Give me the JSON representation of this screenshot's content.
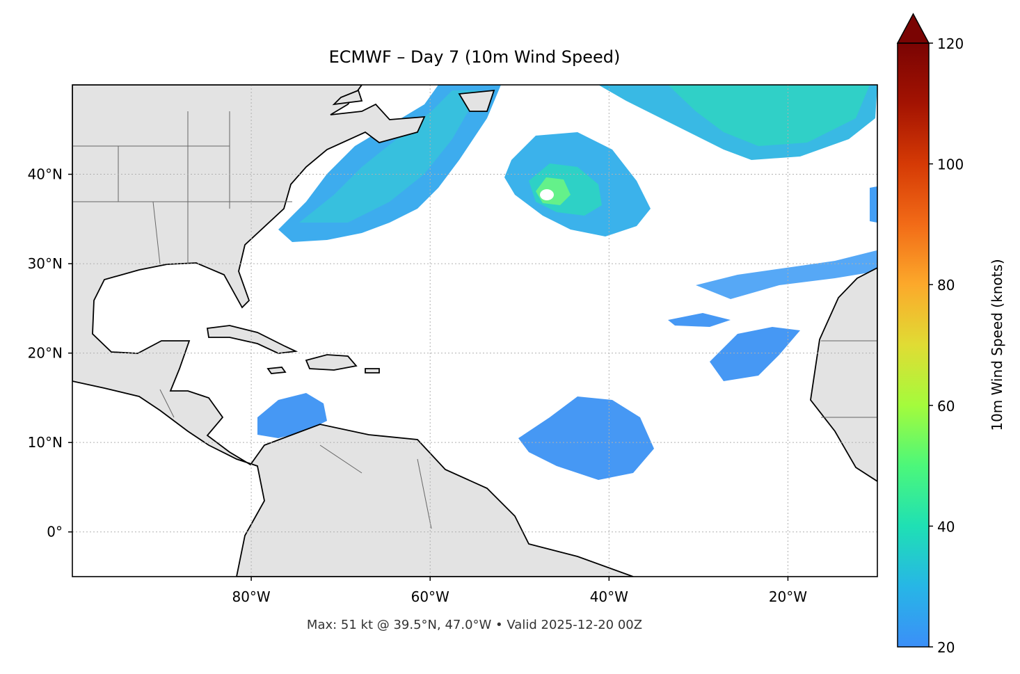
{
  "chart_data": {
    "type": "map",
    "title": "ECMWF – Day 7 (10m Wind Speed)",
    "footnote": "Max: 51 kt @ 39.5°N, 47.0°W • Valid 2025-12-20 00Z",
    "xlim": [
      -100,
      -10
    ],
    "ylim": [
      -5,
      50
    ],
    "xticks": [
      {
        "value": -80,
        "label": "80°W"
      },
      {
        "value": -60,
        "label": "60°W"
      },
      {
        "value": -40,
        "label": "40°W"
      },
      {
        "value": -20,
        "label": "20°W"
      }
    ],
    "yticks": [
      {
        "value": 0,
        "label": "0°"
      },
      {
        "value": 10,
        "label": "10°N"
      },
      {
        "value": 20,
        "label": "20°N"
      },
      {
        "value": 30,
        "label": "30°N"
      },
      {
        "value": 40,
        "label": "40°N"
      }
    ],
    "grid": true,
    "colorbar": {
      "label": "10m Wind Speed (knots)",
      "lim": [
        20,
        120
      ],
      "ticks": [
        20,
        40,
        60,
        80,
        100,
        120
      ],
      "extend": "max",
      "colormap": [
        "#3b8ff8",
        "#27b6e6",
        "#1fe0b4",
        "#4cf77a",
        "#a4fb3c",
        "#e0dc34",
        "#fca92b",
        "#f26b17",
        "#d53a05",
        "#a31302",
        "#7a0403"
      ]
    }
  }
}
